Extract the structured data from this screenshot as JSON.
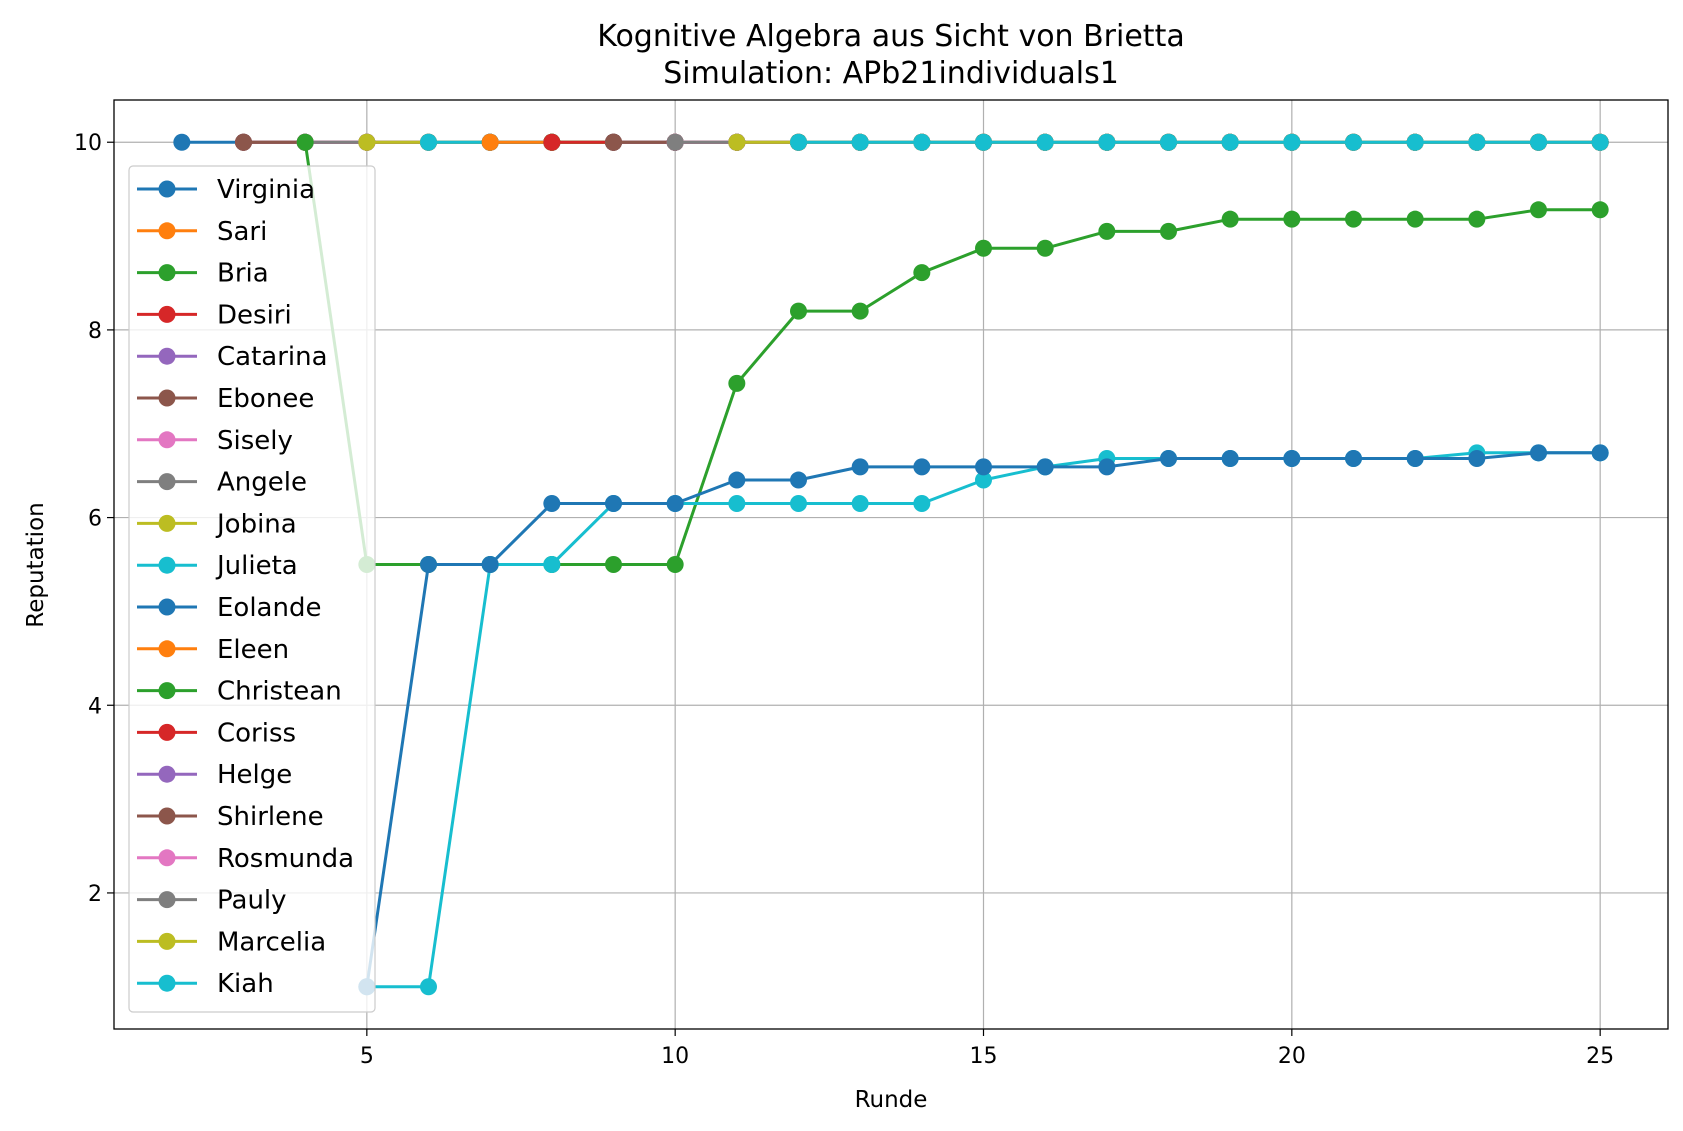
{
  "chart_data": {
    "type": "line",
    "title": "Kognitive Algebra aus Sicht von Brietta",
    "subtitle": "Simulation: APb21individuals1",
    "xlabel": "Runde",
    "ylabel": "Reputation",
    "xlim": [
      0.9,
      26.1
    ],
    "ylim": [
      0.55,
      10.45
    ],
    "xticks": [
      5,
      10,
      15,
      20,
      25
    ],
    "yticks": [
      2,
      4,
      6,
      8,
      10
    ],
    "grid": true,
    "legend_position": "upper-left",
    "series": [
      {
        "name": "Virginia",
        "color": "#1f77b4",
        "x": [
          2,
          3,
          4,
          5,
          6,
          7,
          8,
          9,
          10,
          11,
          12,
          13,
          14,
          15,
          16,
          17,
          18,
          19,
          20,
          21,
          22,
          23,
          24,
          25
        ],
        "y": [
          10,
          10,
          10,
          10,
          10,
          10,
          10,
          10,
          10,
          10,
          10,
          10,
          10,
          10,
          10,
          10,
          10,
          10,
          10,
          10,
          10,
          10,
          10,
          10
        ]
      },
      {
        "name": "Sari",
        "color": "#ff7f0e",
        "x": [
          3,
          4,
          5,
          6,
          7,
          8,
          9,
          10,
          11,
          12,
          13,
          14,
          15,
          16,
          17,
          18,
          19,
          20,
          21,
          22,
          23,
          24,
          25
        ],
        "y": [
          10,
          10,
          10,
          10,
          10,
          10,
          10,
          10,
          10,
          10,
          10,
          10,
          10,
          10,
          10,
          10,
          10,
          10,
          10,
          10,
          10,
          10,
          10
        ]
      },
      {
        "name": "Bria",
        "color": "#2ca02c",
        "x": [
          3,
          4,
          5,
          6,
          7,
          8,
          9,
          10,
          11,
          12,
          13,
          14,
          15,
          16,
          17,
          18,
          19,
          20,
          21,
          22,
          23,
          24,
          25
        ],
        "y": [
          10,
          10,
          10,
          10,
          10,
          10,
          10,
          10,
          10,
          10,
          10,
          10,
          10,
          10,
          10,
          10,
          10,
          10,
          10,
          10,
          10,
          10,
          10
        ]
      },
      {
        "name": "Desiri",
        "color": "#d62728",
        "x": [
          3,
          4,
          5,
          6,
          7,
          8,
          9,
          10,
          11,
          12,
          13,
          14,
          15,
          16,
          17,
          18,
          19,
          20,
          21,
          22,
          23,
          24,
          25
        ],
        "y": [
          10,
          10,
          10,
          10,
          10,
          10,
          10,
          10,
          10,
          10,
          10,
          10,
          10,
          10,
          10,
          10,
          10,
          10,
          10,
          10,
          10,
          10,
          10
        ]
      },
      {
        "name": "Catarina",
        "color": "#9467bd",
        "x": [
          3,
          4,
          5,
          6,
          7,
          8,
          9,
          10,
          11,
          12,
          13,
          14,
          15,
          16,
          17,
          18,
          19,
          20,
          21,
          22,
          23,
          24,
          25
        ],
        "y": [
          10,
          10,
          10,
          10,
          10,
          10,
          10,
          10,
          10,
          10,
          10,
          10,
          10,
          10,
          10,
          10,
          10,
          10,
          10,
          10,
          10,
          10,
          10
        ]
      },
      {
        "name": "Ebonee",
        "color": "#8c564b",
        "x": [
          3,
          4,
          5,
          6,
          7,
          8,
          9,
          10,
          11,
          12,
          13,
          14,
          15,
          16,
          17,
          18,
          19,
          20,
          21,
          22,
          23,
          24,
          25
        ],
        "y": [
          10,
          10,
          10,
          10,
          10,
          10,
          10,
          10,
          10,
          10,
          10,
          10,
          10,
          10,
          10,
          10,
          10,
          10,
          10,
          10,
          10,
          10,
          10
        ]
      },
      {
        "name": "Sisely",
        "color": "#e377c2",
        "x": [
          4,
          5,
          6,
          7,
          8,
          9,
          10,
          11,
          12,
          13,
          14,
          15,
          16,
          17,
          18,
          19,
          20,
          21,
          22,
          23,
          24,
          25
        ],
        "y": [
          10,
          10,
          10,
          10,
          10,
          10,
          10,
          10,
          10,
          10,
          10,
          10,
          10,
          10,
          10,
          10,
          10,
          10,
          10,
          10,
          10,
          10
        ]
      },
      {
        "name": "Angele",
        "color": "#7f7f7f",
        "x": [
          4,
          5,
          6,
          7,
          8,
          9,
          10,
          11,
          12,
          13,
          14,
          15,
          16,
          17,
          18,
          19,
          20,
          21,
          22,
          23,
          24,
          25
        ],
        "y": [
          10,
          10,
          10,
          10,
          10,
          10,
          10,
          10,
          10,
          10,
          10,
          10,
          10,
          10,
          10,
          10,
          10,
          10,
          10,
          10,
          10,
          10
        ]
      },
      {
        "name": "Jobina",
        "color": "#bcbd22",
        "x": [
          5,
          6,
          7,
          8,
          9,
          10,
          11,
          12,
          13,
          14,
          15,
          16,
          17,
          18,
          19,
          20,
          21,
          22,
          23,
          24,
          25
        ],
        "y": [
          10,
          10,
          10,
          10,
          10,
          10,
          10,
          10,
          10,
          10,
          10,
          10,
          10,
          10,
          10,
          10,
          10,
          10,
          10,
          10,
          10
        ]
      },
      {
        "name": "Julieta",
        "color": "#17becf",
        "x": [
          6,
          7,
          8,
          9,
          10,
          11,
          12,
          13,
          14,
          15,
          16,
          17,
          18,
          19,
          20,
          21,
          22,
          23,
          24,
          25
        ],
        "y": [
          10,
          10,
          10,
          10,
          10,
          10,
          10,
          10,
          10,
          10,
          10,
          10,
          10,
          10,
          10,
          10,
          10,
          10,
          10,
          10
        ]
      },
      {
        "name": "Eolande",
        "color": "#1f77b4",
        "x": [
          7,
          8,
          9,
          10,
          11,
          12,
          13,
          14,
          15,
          16,
          17,
          18,
          19,
          20,
          21,
          22,
          23,
          24,
          25
        ],
        "y": [
          10,
          10,
          10,
          10,
          10,
          10,
          10,
          10,
          10,
          10,
          10,
          10,
          10,
          10,
          10,
          10,
          10,
          10,
          10
        ]
      },
      {
        "name": "Eleen",
        "color": "#ff7f0e",
        "x": [
          7,
          8,
          9,
          10,
          11,
          12,
          13,
          14,
          15,
          16,
          17,
          18,
          19,
          20,
          21,
          22,
          23,
          24,
          25
        ],
        "y": [
          10,
          10,
          10,
          10,
          10,
          10,
          10,
          10,
          10,
          10,
          10,
          10,
          10,
          10,
          10,
          10,
          10,
          10,
          10
        ]
      },
      {
        "name": "Christean",
        "color": "#2ca02c",
        "x": [
          8,
          9,
          10,
          11,
          12,
          13,
          14,
          15,
          16,
          17,
          18,
          19,
          20,
          21,
          22,
          23,
          24,
          25
        ],
        "y": [
          10,
          10,
          10,
          10,
          10,
          10,
          10,
          10,
          10,
          10,
          10,
          10,
          10,
          10,
          10,
          10,
          10,
          10
        ]
      },
      {
        "name": "Coriss",
        "color": "#d62728",
        "x": [
          8,
          9,
          10,
          11,
          12,
          13,
          14,
          15,
          16,
          17,
          18,
          19,
          20,
          21,
          22,
          23,
          24,
          25
        ],
        "y": [
          10,
          10,
          10,
          10,
          10,
          10,
          10,
          10,
          10,
          10,
          10,
          10,
          10,
          10,
          10,
          10,
          10,
          10
        ]
      },
      {
        "name": "Helge",
        "color": "#9467bd",
        "x": [
          9,
          10,
          11,
          12,
          13,
          14,
          15,
          16,
          17,
          18,
          19,
          20,
          21,
          22,
          23,
          24,
          25
        ],
        "y": [
          10,
          10,
          10,
          10,
          10,
          10,
          10,
          10,
          10,
          10,
          10,
          10,
          10,
          10,
          10,
          10,
          10
        ]
      },
      {
        "name": "Shirlene",
        "color": "#8c564b",
        "x": [
          9,
          10,
          11,
          12,
          13,
          14,
          15,
          16,
          17,
          18,
          19,
          20,
          21,
          22,
          23,
          24,
          25
        ],
        "y": [
          10,
          10,
          10,
          10,
          10,
          10,
          10,
          10,
          10,
          10,
          10,
          10,
          10,
          10,
          10,
          10,
          10
        ]
      },
      {
        "name": "Rosmunda",
        "color": "#e377c2",
        "x": [
          10,
          11,
          12,
          13,
          14,
          15,
          16,
          17,
          18,
          19,
          20,
          21,
          22,
          23,
          24,
          25
        ],
        "y": [
          10,
          10,
          10,
          10,
          10,
          10,
          10,
          10,
          10,
          10,
          10,
          10,
          10,
          10,
          10,
          10
        ]
      },
      {
        "name": "Pauly",
        "color": "#7f7f7f",
        "x": [
          10,
          11,
          12,
          13,
          14,
          15,
          16,
          17,
          18,
          19,
          20,
          21,
          22,
          23,
          24,
          25
        ],
        "y": [
          10,
          10,
          10,
          10,
          10,
          10,
          10,
          10,
          10,
          10,
          10,
          10,
          10,
          10,
          10,
          10
        ]
      },
      {
        "name": "Marcelia",
        "color": "#bcbd22",
        "x": [
          11,
          12,
          13,
          14,
          15,
          16,
          17,
          18,
          19,
          20,
          21,
          22,
          23,
          24,
          25
        ],
        "y": [
          10,
          10,
          10,
          10,
          10,
          10,
          10,
          10,
          10,
          10,
          10,
          10,
          10,
          10,
          10
        ]
      },
      {
        "name": "Kiah",
        "color": "#17becf",
        "x": [
          12,
          13,
          14,
          15,
          16,
          17,
          18,
          19,
          20,
          21,
          22,
          23,
          24,
          25
        ],
        "y": [
          10,
          10,
          10,
          10,
          10,
          10,
          10,
          10,
          10,
          10,
          10,
          10,
          10,
          10
        ]
      },
      {
        "name": "",
        "color": "#2ca02c",
        "x": [
          4,
          5,
          6,
          7,
          8,
          9,
          10,
          11,
          12,
          13,
          14,
          15,
          16,
          17,
          18,
          19,
          20,
          21,
          22,
          23,
          24,
          25
        ],
        "y": [
          10,
          5.5,
          5.5,
          5.5,
          5.5,
          5.5,
          5.5,
          7.43,
          8.2,
          8.2,
          8.61,
          8.87,
          8.87,
          9.05,
          9.05,
          9.18,
          9.18,
          9.18,
          9.18,
          9.18,
          9.28,
          9.28
        ]
      },
      {
        "name": "",
        "color": "#17becf",
        "x": [
          5,
          6,
          7,
          8,
          9,
          10,
          11,
          12,
          13,
          14,
          15,
          16,
          17,
          18,
          19,
          20,
          21,
          22,
          23,
          24,
          25
        ],
        "y": [
          1,
          1,
          5.5,
          5.5,
          6.15,
          6.15,
          6.15,
          6.15,
          6.15,
          6.15,
          6.4,
          6.54,
          6.63,
          6.63,
          6.63,
          6.63,
          6.63,
          6.63,
          6.69,
          6.69,
          6.69
        ]
      },
      {
        "name": "",
        "color": "#1f77b4",
        "x": [
          5,
          6,
          7,
          8,
          9,
          10,
          11,
          12,
          13,
          14,
          15,
          16,
          17,
          18,
          19,
          20,
          21,
          22,
          23,
          24,
          25
        ],
        "y": [
          1,
          5.5,
          5.5,
          6.15,
          6.15,
          6.15,
          6.4,
          6.4,
          6.54,
          6.54,
          6.54,
          6.54,
          6.54,
          6.63,
          6.63,
          6.63,
          6.63,
          6.63,
          6.63,
          6.69,
          6.69
        ]
      }
    ]
  }
}
